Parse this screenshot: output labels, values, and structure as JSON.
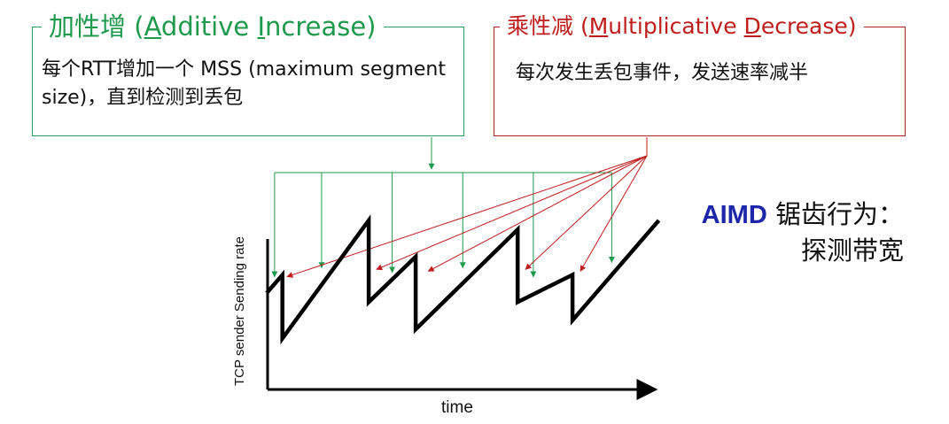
{
  "additive_box": {
    "title_cn": "加性增",
    "title_open": " (",
    "title_a_initial": "A",
    "title_a_rest": "dditive ",
    "title_i_initial": "I",
    "title_i_rest": "ncrease)",
    "description": "每个RTT增加一个 MSS (maximum segment size)，直到检测到丢包"
  },
  "multiplicative_box": {
    "title_cn": "乘性减",
    "title_open": " (",
    "title_m_initial": "M",
    "title_m_rest": "ultiplicative ",
    "title_d_initial": "D",
    "title_d_rest": "ecrease)",
    "description": "每次发生丢包事件，发送速率减半"
  },
  "aimd_label": {
    "strong": "AIMD",
    "line1_rest": " 锯齿行为：",
    "line2": "探测带宽"
  },
  "axes": {
    "x_label": "time",
    "y_label": "TCP sender  Sending rate"
  },
  "colors": {
    "additive": "#1f9a4c",
    "multiplicative": "#c01d1d",
    "aimd": "#1b27a8",
    "sawtooth": "#000000"
  },
  "chart_data": {
    "type": "line",
    "title": "",
    "xlabel": "time",
    "ylabel": "TCP sender  Sending rate",
    "x": [
      0,
      1,
      1,
      6.5,
      6.5,
      9.5,
      9.5,
      16,
      16,
      19.5,
      19.5,
      25
    ],
    "y": [
      4,
      5,
      1.5,
      8,
      3.5,
      6,
      2,
      7.5,
      3.5,
      5,
      2.5,
      8
    ],
    "series_style": "sawtooth"
  }
}
